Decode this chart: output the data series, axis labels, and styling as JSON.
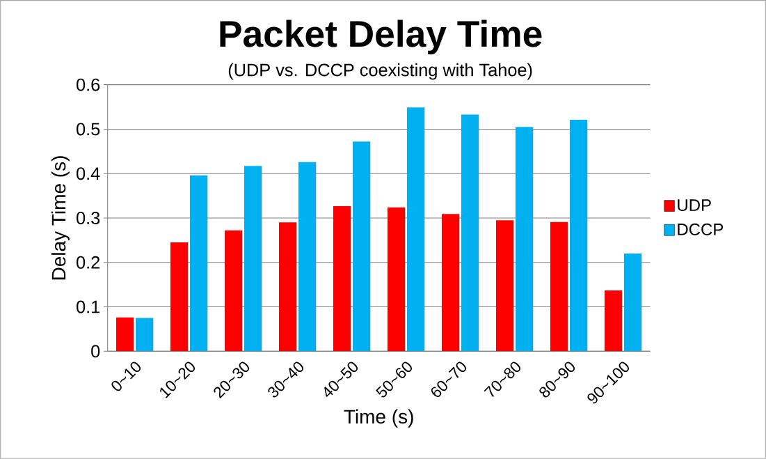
{
  "chart_data": {
    "type": "bar",
    "title": "Packet Delay Time",
    "subtitle": "(UDP vs. DCCP coexisting with Tahoe)",
    "xlabel": "Time (s)",
    "ylabel": "Delay Time (s)",
    "categories": [
      "0~10",
      "10~20",
      "20~30",
      "30~40",
      "40~50",
      "50~60",
      "60~70",
      "70~80",
      "80~90",
      "90~100"
    ],
    "series": [
      {
        "name": "UDP",
        "color": "#ff0000",
        "values": [
          0.076,
          0.245,
          0.272,
          0.29,
          0.327,
          0.324,
          0.309,
          0.295,
          0.291,
          0.137
        ]
      },
      {
        "name": "DCCP",
        "color": "#00b0f0",
        "values": [
          0.075,
          0.396,
          0.417,
          0.426,
          0.472,
          0.549,
          0.533,
          0.505,
          0.521,
          0.22
        ]
      }
    ],
    "ylim": [
      0,
      0.6
    ],
    "yticks": [
      0,
      0.1,
      0.2,
      0.3,
      0.4,
      0.5,
      0.6
    ],
    "grid": "y",
    "legend": "right"
  }
}
